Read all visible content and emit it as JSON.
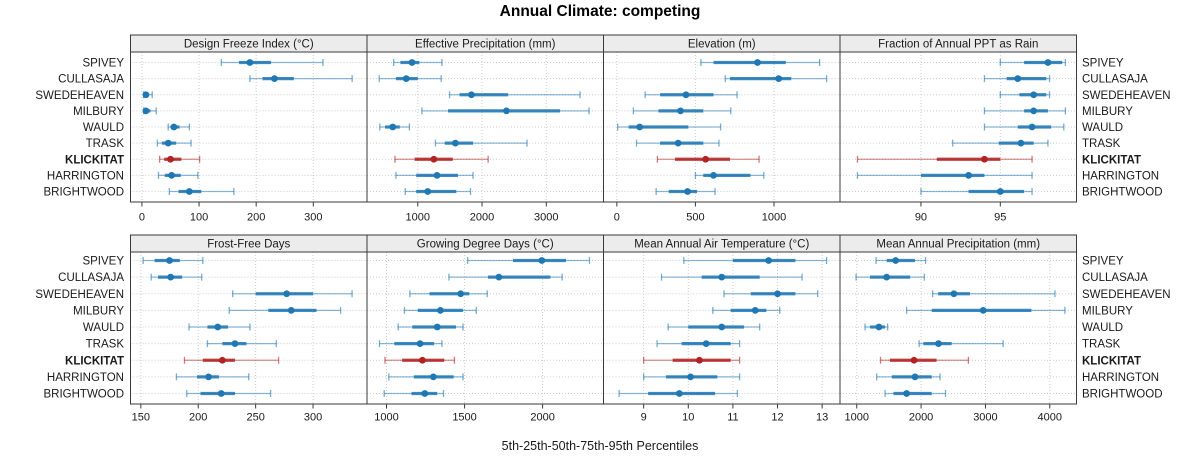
{
  "chart_data": {
    "type": "dotplot",
    "title": "Annual Climate: competing",
    "caption": "5th-25th-50th-75th-95th Percentiles",
    "percentile_labels": [
      "5th",
      "25th",
      "50th",
      "75th",
      "95th"
    ],
    "stations": [
      "SPIVEY",
      "CULLASAJA",
      "SWEDEHEAVEN",
      "MILBURY",
      "WAULD",
      "TRASK",
      "KLICKITAT",
      "HARRINGTON",
      "BRIGHTWOOD"
    ],
    "highlight_station": "KLICKITAT",
    "colors": {
      "normal": "#1f77b4",
      "highlight": "#b22222",
      "grid": "#cccccc",
      "strip_bg": "#ececec",
      "border": "#3a3a3a",
      "text": "#1a1a1a"
    },
    "legend_position": "none",
    "grid": "dotted",
    "panels": [
      {
        "label": "Design Freeze Index (°C)",
        "row": 0,
        "col": 0,
        "xlim": [
          -20,
          394
        ],
        "ticks": [
          0,
          100,
          200,
          300
        ],
        "series": {
          "SPIVEY": [
            139,
            170,
            189,
            226,
            317
          ],
          "CULLASAJA": [
            189,
            211,
            232,
            266,
            368
          ],
          "SWEDEHEAVEN": [
            3,
            5,
            7,
            11,
            18
          ],
          "MILBURY": [
            3,
            5,
            7,
            15,
            25
          ],
          "WAULD": [
            46,
            50,
            56,
            66,
            83
          ],
          "TRASK": [
            27,
            35,
            46,
            60,
            86
          ],
          "KLICKITAT": [
            31,
            39,
            50,
            69,
            101
          ],
          "HARRINGTON": [
            29,
            40,
            52,
            68,
            98
          ],
          "BRIGHTWOOD": [
            48,
            64,
            83,
            104,
            161
          ]
        }
      },
      {
        "label": "Effective Precipitation (mm)",
        "row": 0,
        "col": 1,
        "xlim": [
          210,
          3890
        ],
        "ticks": [
          1000,
          2000,
          3000
        ],
        "series": {
          "SPIVEY": [
            625,
            730,
            910,
            1025,
            1375
          ],
          "CULLASAJA": [
            400,
            660,
            820,
            1000,
            1365
          ],
          "SWEDEHEAVEN": [
            1495,
            1650,
            1835,
            2405,
            3525
          ],
          "MILBURY": [
            1065,
            1470,
            2380,
            3215,
            3665
          ],
          "WAULD": [
            410,
            490,
            610,
            720,
            870
          ],
          "TRASK": [
            1275,
            1420,
            1585,
            1860,
            2700
          ],
          "KLICKITAT": [
            645,
            950,
            1250,
            1545,
            2095
          ],
          "HARRINGTON": [
            660,
            975,
            1300,
            1625,
            1860
          ],
          "BRIGHTWOOD": [
            805,
            975,
            1155,
            1600,
            1820
          ]
        }
      },
      {
        "label": "Elevation (m)",
        "row": 0,
        "col": 2,
        "xlim": [
          -85,
          1420
        ],
        "ticks": [
          0,
          500,
          1000
        ],
        "series": {
          "SPIVEY": [
            535,
            615,
            895,
            1075,
            1290
          ],
          "CULLASAJA": [
            690,
            720,
            1030,
            1110,
            1335
          ],
          "SWEDEHEAVEN": [
            180,
            275,
            440,
            615,
            765
          ],
          "MILBURY": [
            105,
            265,
            405,
            550,
            725
          ],
          "WAULD": [
            5,
            75,
            145,
            455,
            660
          ],
          "TRASK": [
            125,
            275,
            390,
            550,
            650
          ],
          "KLICKITAT": [
            258,
            370,
            565,
            720,
            905
          ],
          "HARRINGTON": [
            500,
            550,
            615,
            850,
            935
          ],
          "BRIGHTWOOD": [
            250,
            330,
            450,
            510,
            625
          ]
        }
      },
      {
        "label": "Fraction of Annual PPT as Rain",
        "row": 0,
        "col": 3,
        "xlim": [
          84.9,
          99.8
        ],
        "ticks": [
          90,
          95
        ],
        "series": {
          "SPIVEY": [
            95.0,
            96.5,
            98.0,
            98.9,
            99.1
          ],
          "CULLASAJA": [
            94.0,
            95.4,
            96.1,
            97.9,
            98.1
          ],
          "SWEDEHEAVEN": [
            95.0,
            96.2,
            97.1,
            97.9,
            98.1
          ],
          "MILBURY": [
            94.0,
            96.5,
            97.1,
            98.0,
            99.1
          ],
          "WAULD": [
            94.0,
            96.1,
            97.0,
            98.2,
            99.0
          ],
          "TRASK": [
            92.0,
            94.9,
            96.3,
            97.1,
            98.0
          ],
          "KLICKITAT": [
            86.0,
            91.0,
            94.0,
            95.0,
            97.0
          ],
          "HARRINGTON": [
            86.0,
            90.0,
            93.0,
            94.0,
            97.0
          ],
          "BRIGHTWOOD": [
            90.0,
            93.0,
            95.0,
            96.5,
            97.0
          ]
        }
      },
      {
        "label": "Frost-Free Days",
        "row": 1,
        "col": 0,
        "xlim": [
          141,
          347
        ],
        "ticks": [
          150,
          200,
          250,
          300
        ],
        "series": {
          "SPIVEY": [
            152,
            162,
            175,
            184,
            204
          ],
          "CULLASAJA": [
            159,
            165,
            176,
            186,
            203
          ],
          "SWEDEHEAVEN": [
            230,
            250,
            277,
            300,
            334
          ],
          "MILBURY": [
            227,
            261,
            281,
            303,
            324
          ],
          "WAULD": [
            192,
            208,
            217,
            226,
            245
          ],
          "TRASK": [
            208,
            221,
            232,
            242,
            268
          ],
          "KLICKITAT": [
            188,
            204,
            221,
            232,
            270
          ],
          "HARRINGTON": [
            181,
            199,
            209,
            218,
            244
          ],
          "BRIGHTWOOD": [
            190,
            202,
            220,
            232,
            263
          ]
        }
      },
      {
        "label": "Growing Degree Days (°C)",
        "row": 1,
        "col": 1,
        "xlim": [
          875,
          2390
        ],
        "ticks": [
          1000,
          1500,
          2000
        ],
        "series": {
          "SPIVEY": [
            1520,
            1810,
            1995,
            2150,
            2300
          ],
          "CULLASAJA": [
            1400,
            1650,
            1720,
            2050,
            2125
          ],
          "SWEDEHEAVEN": [
            1150,
            1275,
            1475,
            1530,
            1645
          ],
          "MILBURY": [
            1115,
            1200,
            1345,
            1490,
            1575
          ],
          "WAULD": [
            1075,
            1165,
            1325,
            1445,
            1490
          ],
          "TRASK": [
            955,
            1050,
            1215,
            1305,
            1355
          ],
          "KLICKITAT": [
            990,
            1100,
            1230,
            1370,
            1435
          ],
          "HARRINGTON": [
            1015,
            1175,
            1300,
            1430,
            1490
          ],
          "BRIGHTWOOD": [
            985,
            1160,
            1245,
            1325,
            1365
          ]
        }
      },
      {
        "label": "Mean Annual Air Temperature (°C)",
        "row": 1,
        "col": 2,
        "xlim": [
          8.1,
          13.4
        ],
        "ticks": [
          9,
          10,
          11,
          12,
          13
        ],
        "series": {
          "SPIVEY": [
            9.9,
            11.0,
            11.8,
            12.4,
            13.1
          ],
          "CULLASAJA": [
            9.4,
            10.3,
            10.75,
            11.6,
            12.55
          ],
          "SWEDEHEAVEN": [
            10.8,
            11.4,
            12.0,
            12.4,
            12.9
          ],
          "MILBURY": [
            10.55,
            10.95,
            11.5,
            11.75,
            12.05
          ],
          "WAULD": [
            9.55,
            10.0,
            10.75,
            11.25,
            11.6
          ],
          "TRASK": [
            9.3,
            9.85,
            10.4,
            10.95,
            11.15
          ],
          "KLICKITAT": [
            9.0,
            9.65,
            10.25,
            10.95,
            11.15
          ],
          "HARRINGTON": [
            9.0,
            9.5,
            10.05,
            10.65,
            11.15
          ],
          "BRIGHTWOOD": [
            8.45,
            9.1,
            9.8,
            10.6,
            11.1
          ]
        }
      },
      {
        "label": "Mean Annual Precipitation (mm)",
        "row": 1,
        "col": 3,
        "xlim": [
          740,
          4415
        ],
        "ticks": [
          1000,
          2000,
          3000,
          4000
        ],
        "series": {
          "SPIVEY": [
            1300,
            1465,
            1605,
            1905,
            2070
          ],
          "CULLASAJA": [
            990,
            1205,
            1465,
            1830,
            2050
          ],
          "SWEDEHEAVEN": [
            2180,
            2265,
            2510,
            2760,
            4080
          ],
          "MILBURY": [
            1775,
            2165,
            2965,
            3715,
            4235
          ],
          "WAULD": [
            1130,
            1205,
            1345,
            1440,
            1480
          ],
          "TRASK": [
            1970,
            2035,
            2270,
            2475,
            3275
          ],
          "KLICKITAT": [
            1370,
            1515,
            1890,
            2240,
            2735
          ],
          "HARRINGTON": [
            1310,
            1545,
            1905,
            2165,
            2295
          ],
          "BRIGHTWOOD": [
            1440,
            1570,
            1775,
            2165,
            2380
          ]
        }
      }
    ]
  }
}
